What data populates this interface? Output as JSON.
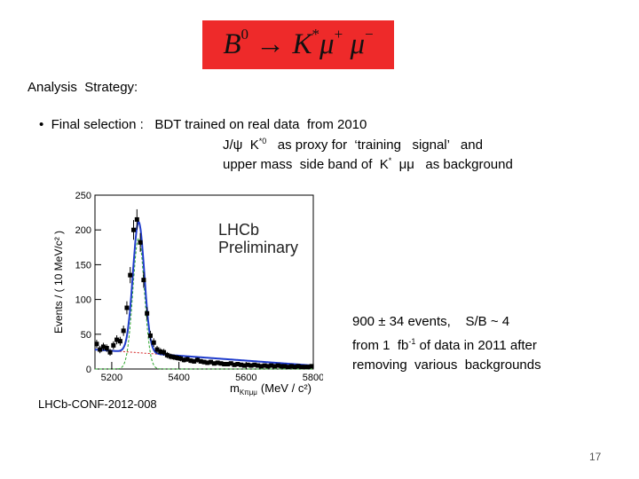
{
  "slide": {
    "title_parts": {
      "b": "B",
      "b_sup": "0",
      "arrow": "→",
      "k": "K",
      "k_sup": "*",
      "mu1": "μ",
      "mu1_sup": "+",
      "mu2": "μ",
      "mu2_sup": "−"
    },
    "heading": "Analysis  Strategy:",
    "bullet_symbol": "•",
    "bullet_text": "Final selection :   BDT trained on real data  from 2010",
    "line2": {
      "pre": "J/ψ  K",
      "sup": "*0",
      "post": "   as proxy for  ‘training   signal’   and"
    },
    "line3": {
      "pre": "upper mass  side band of  K",
      "sup": "*",
      "post": "  μμ   as background"
    },
    "info_line1": "900 ± 34 events,    S/B ~ 4",
    "info_line2": {
      "pre": "from 1  fb",
      "sup": "-1",
      "post": " of data in 2011 after"
    },
    "info_line3": "removing  various  backgrounds",
    "reference": "LHCb-CONF-2012-008",
    "page_number": "17"
  },
  "chart_data": {
    "type": "scatter",
    "xlabel": "m",
    "xlabel_sub": "Kπμμ",
    "xlabel_unit": "(MeV / c²)",
    "ylabel": "Events / ( 10 MeV/c² )",
    "xlim": [
      5150,
      5800
    ],
    "ylim": [
      0,
      250
    ],
    "xticks": [
      5200,
      5400,
      5600,
      5800
    ],
    "yticks": [
      0,
      50,
      100,
      150,
      200,
      250
    ],
    "annotation_line1": "LHCb",
    "annotation_line2": "Preliminary",
    "colors": {
      "points": "#000000",
      "total_fit": "#1f3ccc",
      "signal": "#2aa52a",
      "background": "#d42020"
    },
    "points": [
      [
        5155,
        36
      ],
      [
        5165,
        28
      ],
      [
        5175,
        32
      ],
      [
        5185,
        30
      ],
      [
        5195,
        24
      ],
      [
        5205,
        34
      ],
      [
        5215,
        42
      ],
      [
        5225,
        40
      ],
      [
        5235,
        55
      ],
      [
        5245,
        88
      ],
      [
        5255,
        135
      ],
      [
        5265,
        200
      ],
      [
        5275,
        215
      ],
      [
        5285,
        182
      ],
      [
        5295,
        128
      ],
      [
        5305,
        80
      ],
      [
        5315,
        48
      ],
      [
        5325,
        38
      ],
      [
        5335,
        28
      ],
      [
        5345,
        25
      ],
      [
        5355,
        24
      ],
      [
        5365,
        20
      ],
      [
        5375,
        18
      ],
      [
        5385,
        17
      ],
      [
        5395,
        16
      ],
      [
        5405,
        15
      ],
      [
        5415,
        13
      ],
      [
        5425,
        14
      ],
      [
        5435,
        12
      ],
      [
        5445,
        11
      ],
      [
        5455,
        13
      ],
      [
        5465,
        11
      ],
      [
        5475,
        10
      ],
      [
        5485,
        9
      ],
      [
        5495,
        10
      ],
      [
        5505,
        8
      ],
      [
        5515,
        9
      ],
      [
        5525,
        8
      ],
      [
        5535,
        7
      ],
      [
        5545,
        7
      ],
      [
        5555,
        8
      ],
      [
        5565,
        6
      ],
      [
        5575,
        7
      ],
      [
        5585,
        6
      ],
      [
        5595,
        5
      ],
      [
        5605,
        6
      ],
      [
        5615,
        5
      ],
      [
        5625,
        6
      ],
      [
        5635,
        5
      ],
      [
        5645,
        4
      ],
      [
        5655,
        5
      ],
      [
        5665,
        4
      ],
      [
        5675,
        5
      ],
      [
        5685,
        4
      ],
      [
        5695,
        5
      ],
      [
        5705,
        4
      ],
      [
        5715,
        4
      ],
      [
        5725,
        3
      ],
      [
        5735,
        4
      ],
      [
        5745,
        3
      ],
      [
        5755,
        4
      ],
      [
        5765,
        3
      ],
      [
        5775,
        3
      ],
      [
        5785,
        3
      ],
      [
        5795,
        4
      ]
    ],
    "fit": {
      "signal_mean": 5280,
      "signal_sigma": 17,
      "signal_peak": 188,
      "bkg_at_min": 28,
      "bkg_at_max": 5
    }
  }
}
